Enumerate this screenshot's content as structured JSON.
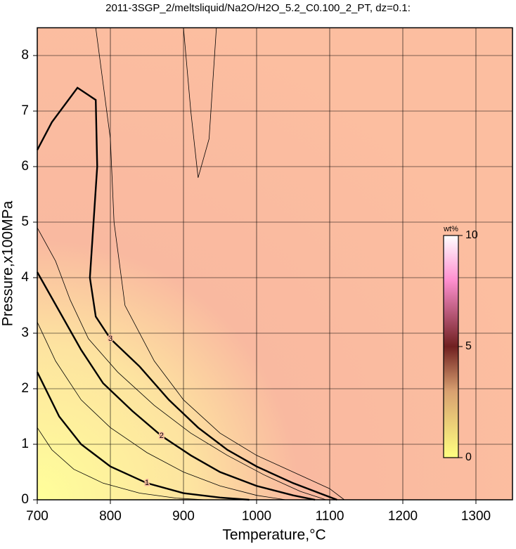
{
  "chart_data": {
    "type": "contour",
    "title": "2011-3SGP_2/meltsliquid/Na2O/H2O_5.2_C0.100_2_PT, dz=0.1:",
    "x_label": "Temperature,°C",
    "y_label": "Pressure,x100MPa",
    "xlim": [
      700,
      1350
    ],
    "ylim": [
      0,
      8.5
    ],
    "xticks": [
      700,
      800,
      900,
      1000,
      1100,
      1200,
      1300
    ],
    "yticks": [
      0,
      1,
      2,
      3,
      4,
      5,
      6,
      7,
      8
    ],
    "grid": true,
    "contours": [
      {
        "level": 0.5,
        "x": [
          700,
          720,
          750,
          790,
          840,
          890,
          930
        ],
        "y": [
          1.3,
          0.9,
          0.55,
          0.3,
          0.12,
          0.03,
          0
        ]
      },
      {
        "level": 1,
        "x": [
          700,
          730,
          760,
          800,
          850,
          900,
          950,
          990
        ],
        "y": [
          2.3,
          1.5,
          1.0,
          0.6,
          0.3,
          0.12,
          0.04,
          0
        ]
      },
      {
        "level": 1.5,
        "x": [
          700,
          725,
          760,
          800,
          850,
          900,
          950,
          1000,
          1040
        ],
        "y": [
          3.2,
          2.5,
          1.8,
          1.3,
          0.85,
          0.5,
          0.25,
          0.08,
          0
        ]
      },
      {
        "level": 2,
        "x": [
          700,
          730,
          760,
          790,
          830,
          870,
          910,
          950,
          1000,
          1050,
          1080
        ],
        "y": [
          4.1,
          3.4,
          2.7,
          2.1,
          1.6,
          1.15,
          0.8,
          0.5,
          0.25,
          0.08,
          0
        ]
      },
      {
        "level": 2.5,
        "x": [
          700,
          725,
          745,
          770,
          810,
          860,
          910,
          960,
          1010,
          1060,
          1095
        ],
        "y": [
          4.9,
          4.3,
          3.6,
          2.9,
          2.3,
          1.7,
          1.2,
          0.8,
          0.45,
          0.15,
          0
        ]
      },
      {
        "level": 3,
        "x": [
          700,
          720,
          755,
          780,
          782,
          777,
          772,
          780,
          800,
          840,
          880,
          920,
          960,
          1000,
          1050,
          1090,
          1110
        ],
        "y": [
          6.3,
          6.8,
          7.42,
          7.2,
          6.0,
          5.0,
          4.0,
          3.3,
          2.9,
          2.4,
          1.8,
          1.3,
          0.9,
          0.6,
          0.3,
          0.1,
          0
        ]
      },
      {
        "level": 3.5,
        "x": [
          780,
          790,
          800,
          805,
          820,
          860,
          900,
          950,
          1000,
          1050,
          1100,
          1120
        ],
        "y": [
          8.5,
          7.5,
          6.5,
          5.0,
          3.5,
          2.5,
          1.8,
          1.2,
          0.8,
          0.5,
          0.2,
          0
        ]
      },
      {
        "level": 3.8,
        "x": [
          900,
          910,
          920,
          935,
          945
        ],
        "y": [
          8.5,
          7.0,
          5.8,
          6.5,
          8.5
        ]
      }
    ],
    "colorbar": {
      "label": "wt%",
      "lim": [
        0,
        10
      ],
      "ticks": [
        0,
        5,
        10
      ]
    }
  }
}
